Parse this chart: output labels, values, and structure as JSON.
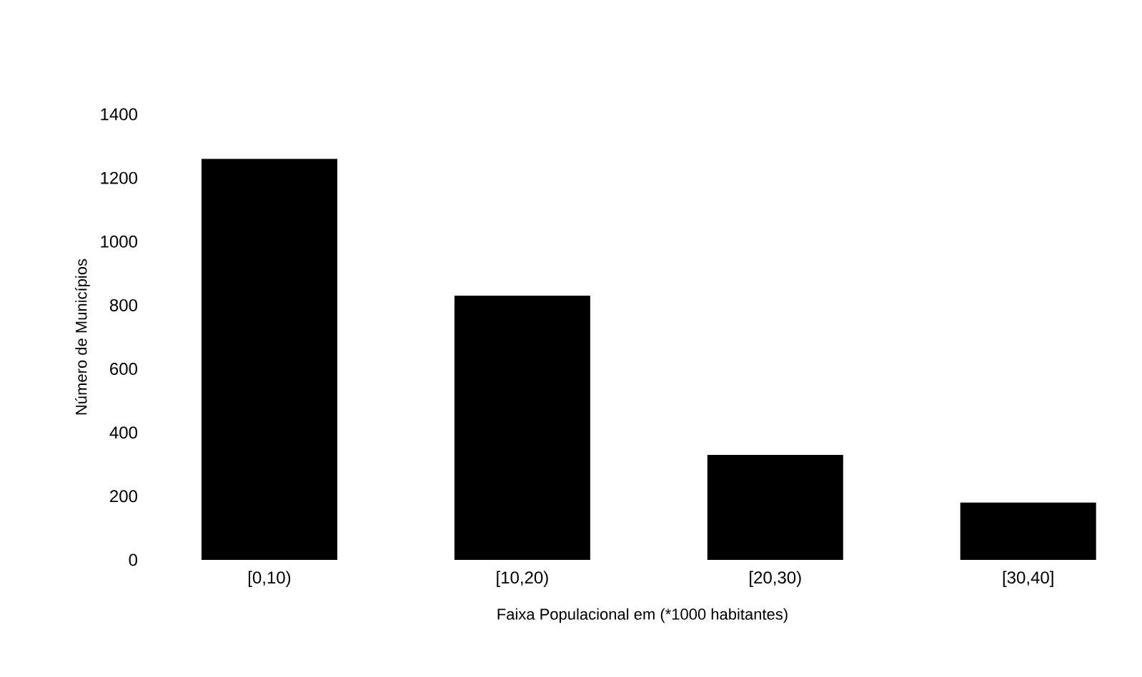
{
  "chart_data": {
    "type": "bar",
    "xlabel": "Faixa Populacional em (*1000 habitantes)",
    "ylabel": "Número de Municípios",
    "categories": [
      "[0,10)",
      "[10,20)",
      "[20,30)",
      "[30,40]"
    ],
    "values": [
      1260,
      830,
      330,
      180
    ],
    "color": "#000000",
    "ylim": [
      0,
      1400
    ],
    "yticks": [
      0,
      200,
      400,
      600,
      800,
      1000,
      1200,
      1400
    ],
    "grid": false
  }
}
